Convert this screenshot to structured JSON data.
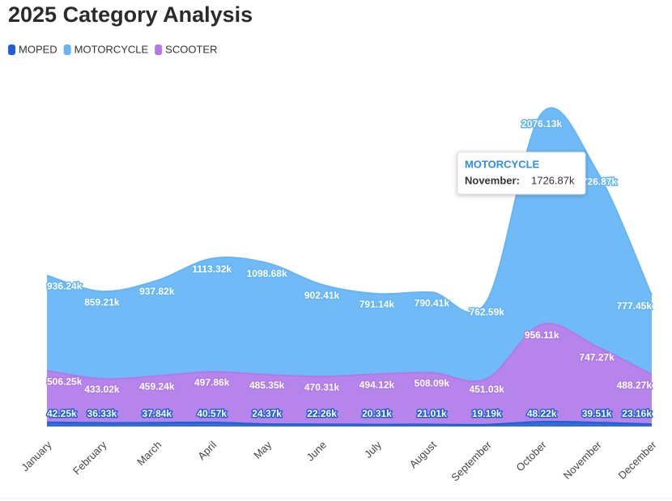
{
  "chart_data": {
    "type": "stacked_area",
    "title": "2025 Category Analysis",
    "categories": [
      "January",
      "February",
      "March",
      "April",
      "May",
      "June",
      "July",
      "August",
      "September",
      "October",
      "November",
      "December"
    ],
    "series": [
      {
        "name": "MOPED",
        "color": "#1f5fd6",
        "values": [
          42250,
          36330,
          37840,
          40570,
          24370,
          22260,
          20310,
          21010,
          19190,
          48220,
          39510,
          23160
        ],
        "value_labels": [
          "42.25k",
          "36.33k",
          "37.84k",
          "40.57k",
          "24.37k",
          "22.26k",
          "20.31k",
          "21.01k",
          "19.19k",
          "48.22k",
          "39.51k",
          "23.16k"
        ]
      },
      {
        "name": "MOTORCYCLE",
        "color": "#64b5f6",
        "values": [
          936240,
          859210,
          937820,
          1113320,
          1098680,
          902410,
          791140,
          790410,
          762590,
          2076130,
          1726870,
          777450
        ],
        "value_labels": [
          "936.24k",
          "859.21k",
          "937.82k",
          "1113.32k",
          "1098.68k",
          "902.41k",
          "791.14k",
          "790.41k",
          "762.59k",
          "2076.13k",
          "1726.87k",
          "777.45k"
        ]
      },
      {
        "name": "SCOOTER",
        "color": "#b07ae8",
        "values": [
          506250,
          433020,
          459240,
          497860,
          485350,
          470310,
          494120,
          508090,
          451030,
          956110,
          747270,
          488270
        ],
        "value_labels": [
          "506.25k",
          "433.02k",
          "459.24k",
          "497.86k",
          "485.35k",
          "470.31k",
          "494.12k",
          "508.09k",
          "451.03k",
          "956.11k",
          "747.27k",
          "488.27k"
        ]
      }
    ],
    "stack_order": [
      0,
      2,
      1
    ],
    "tooltip": {
      "series": "MOTORCYCLE",
      "label": "November:",
      "value": "1726.87k"
    }
  }
}
